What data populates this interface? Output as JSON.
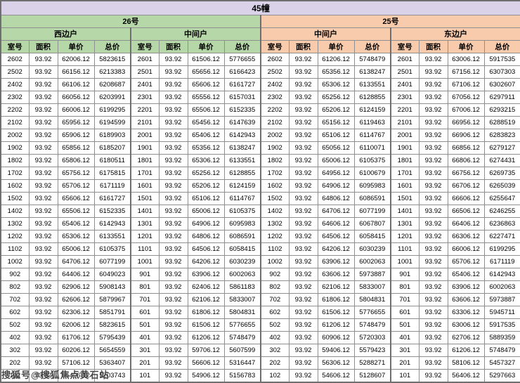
{
  "table": {
    "title": "45幢",
    "sections": [
      {
        "label": "26号",
        "units": [
          "西边户",
          "中间户"
        ]
      },
      {
        "label": "25号",
        "units": [
          "中间户",
          "东边户"
        ]
      }
    ],
    "columns": [
      "室号",
      "面积",
      "单价",
      "总价"
    ],
    "rows": [
      [
        "2602",
        "93.92",
        "62006.12",
        "5823615",
        "2601",
        "93.92",
        "61506.12",
        "5776655",
        "2602",
        "93.92",
        "61206.12",
        "5748479",
        "2601",
        "93.92",
        "63006.12",
        "5917535"
      ],
      [
        "2502",
        "93.92",
        "66156.12",
        "6213383",
        "2501",
        "93.92",
        "65656.12",
        "6166423",
        "2502",
        "93.92",
        "65356.12",
        "6138247",
        "2501",
        "93.92",
        "67156.12",
        "6307303"
      ],
      [
        "2402",
        "93.92",
        "66106.12",
        "6208687",
        "2401",
        "93.92",
        "65606.12",
        "6161727",
        "2402",
        "93.92",
        "65306.12",
        "6133551",
        "2401",
        "93.92",
        "67106.12",
        "6302607"
      ],
      [
        "2302",
        "93.92",
        "66056.12",
        "6203991",
        "2301",
        "93.92",
        "65556.12",
        "6157031",
        "2302",
        "93.92",
        "65256.12",
        "6128855",
        "2301",
        "93.92",
        "67056.12",
        "6297911"
      ],
      [
        "2202",
        "93.92",
        "66006.12",
        "6199295",
        "2201",
        "93.92",
        "65506.12",
        "6152335",
        "2202",
        "93.92",
        "65206.12",
        "6124159",
        "2201",
        "93.92",
        "67006.12",
        "6293215"
      ],
      [
        "2102",
        "93.92",
        "65956.12",
        "6194599",
        "2101",
        "93.92",
        "65456.12",
        "6147639",
        "2102",
        "93.92",
        "65156.12",
        "6119463",
        "2101",
        "93.92",
        "66956.12",
        "6288519"
      ],
      [
        "2002",
        "93.92",
        "65906.12",
        "6189903",
        "2001",
        "93.92",
        "65406.12",
        "6142943",
        "2002",
        "93.92",
        "65106.12",
        "6114767",
        "2001",
        "93.92",
        "66906.12",
        "6283823"
      ],
      [
        "1902",
        "93.92",
        "65856.12",
        "6185207",
        "1901",
        "93.92",
        "65356.12",
        "6138247",
        "1902",
        "93.92",
        "65056.12",
        "6110071",
        "1901",
        "93.92",
        "66856.12",
        "6279127"
      ],
      [
        "1802",
        "93.92",
        "65806.12",
        "6180511",
        "1801",
        "93.92",
        "65306.12",
        "6133551",
        "1802",
        "93.92",
        "65006.12",
        "6105375",
        "1801",
        "93.92",
        "66806.12",
        "6274431"
      ],
      [
        "1702",
        "93.92",
        "65756.12",
        "6175815",
        "1701",
        "93.92",
        "65256.12",
        "6128855",
        "1702",
        "93.92",
        "64956.12",
        "6100679",
        "1701",
        "93.92",
        "66756.12",
        "6269735"
      ],
      [
        "1602",
        "93.92",
        "65706.12",
        "6171119",
        "1601",
        "93.92",
        "65206.12",
        "6124159",
        "1602",
        "93.92",
        "64906.12",
        "6095983",
        "1601",
        "93.92",
        "66706.12",
        "6265039"
      ],
      [
        "1502",
        "93.92",
        "65606.12",
        "6161727",
        "1501",
        "93.92",
        "65106.12",
        "6114767",
        "1502",
        "93.92",
        "64806.12",
        "6086591",
        "1501",
        "93.92",
        "66606.12",
        "6255647"
      ],
      [
        "1402",
        "93.92",
        "65506.12",
        "6152335",
        "1401",
        "93.92",
        "65006.12",
        "6105375",
        "1402",
        "93.92",
        "64706.12",
        "6077199",
        "1401",
        "93.92",
        "66506.12",
        "6246255"
      ],
      [
        "1302",
        "93.92",
        "65406.12",
        "6142943",
        "1301",
        "93.92",
        "64906.12",
        "6095983",
        "1302",
        "93.92",
        "64606.12",
        "6067807",
        "1301",
        "93.92",
        "66406.12",
        "6236863"
      ],
      [
        "1202",
        "93.92",
        "65306.12",
        "6133551",
        "1201",
        "93.92",
        "64806.12",
        "6086591",
        "1202",
        "93.92",
        "64506.12",
        "6058415",
        "1201",
        "93.92",
        "66306.12",
        "6227471"
      ],
      [
        "1102",
        "93.92",
        "65006.12",
        "6105375",
        "1101",
        "93.92",
        "64506.12",
        "6058415",
        "1102",
        "93.92",
        "64206.12",
        "6030239",
        "1101",
        "93.92",
        "66006.12",
        "6199295"
      ],
      [
        "1002",
        "93.92",
        "64706.12",
        "6077199",
        "1001",
        "93.92",
        "64206.12",
        "6030239",
        "1002",
        "93.92",
        "63906.12",
        "6002063",
        "1001",
        "93.92",
        "65706.12",
        "6171119"
      ],
      [
        "902",
        "93.92",
        "64406.12",
        "6049023",
        "901",
        "93.92",
        "63906.12",
        "6002063",
        "902",
        "93.92",
        "63606.12",
        "5973887",
        "901",
        "93.92",
        "65406.12",
        "6142943"
      ],
      [
        "802",
        "93.92",
        "62906.12",
        "5908143",
        "801",
        "93.92",
        "62406.12",
        "5861183",
        "802",
        "93.92",
        "62106.12",
        "5833007",
        "801",
        "93.92",
        "63906.12",
        "6002063"
      ],
      [
        "702",
        "93.92",
        "62606.12",
        "5879967",
        "701",
        "93.92",
        "62106.12",
        "5833007",
        "702",
        "93.92",
        "61806.12",
        "5804831",
        "701",
        "93.92",
        "63606.12",
        "5973887"
      ],
      [
        "602",
        "93.92",
        "62306.12",
        "5851791",
        "601",
        "93.92",
        "61806.12",
        "5804831",
        "602",
        "93.92",
        "61506.12",
        "5776655",
        "601",
        "93.92",
        "63306.12",
        "5945711"
      ],
      [
        "502",
        "93.92",
        "62006.12",
        "5823615",
        "501",
        "93.92",
        "61506.12",
        "5776655",
        "502",
        "93.92",
        "61206.12",
        "5748479",
        "501",
        "93.92",
        "63006.12",
        "5917535"
      ],
      [
        "402",
        "93.92",
        "61706.12",
        "5795439",
        "401",
        "93.92",
        "61206.12",
        "5748479",
        "402",
        "93.92",
        "60906.12",
        "5720303",
        "401",
        "93.92",
        "62706.12",
        "5889359"
      ],
      [
        "302",
        "93.92",
        "60206.12",
        "5654559",
        "301",
        "93.92",
        "59706.12",
        "5607599",
        "302",
        "93.92",
        "59406.12",
        "5579423",
        "301",
        "93.92",
        "61206.12",
        "5748479"
      ],
      [
        "202",
        "93.92",
        "57106.12",
        "5363407",
        "201",
        "93.92",
        "56606.12",
        "5316447",
        "202",
        "93.92",
        "56306.12",
        "5288271",
        "201",
        "93.92",
        "58106.12",
        "5457327"
      ],
      [
        "102",
        "93.92",
        "55406.12",
        "5203743",
        "101",
        "93.92",
        "54906.12",
        "5156783",
        "102",
        "93.92",
        "54606.12",
        "5128607",
        "101",
        "93.92",
        "56406.12",
        "5297663"
      ]
    ]
  },
  "watermark": "搜狐号@搜狐焦点黄石站",
  "colors": {
    "title_bg": "#d9d2e9",
    "section26_bg": "#b6d7a8",
    "section25_bg": "#f8cbad",
    "grid_line": "#8f8f8f"
  }
}
